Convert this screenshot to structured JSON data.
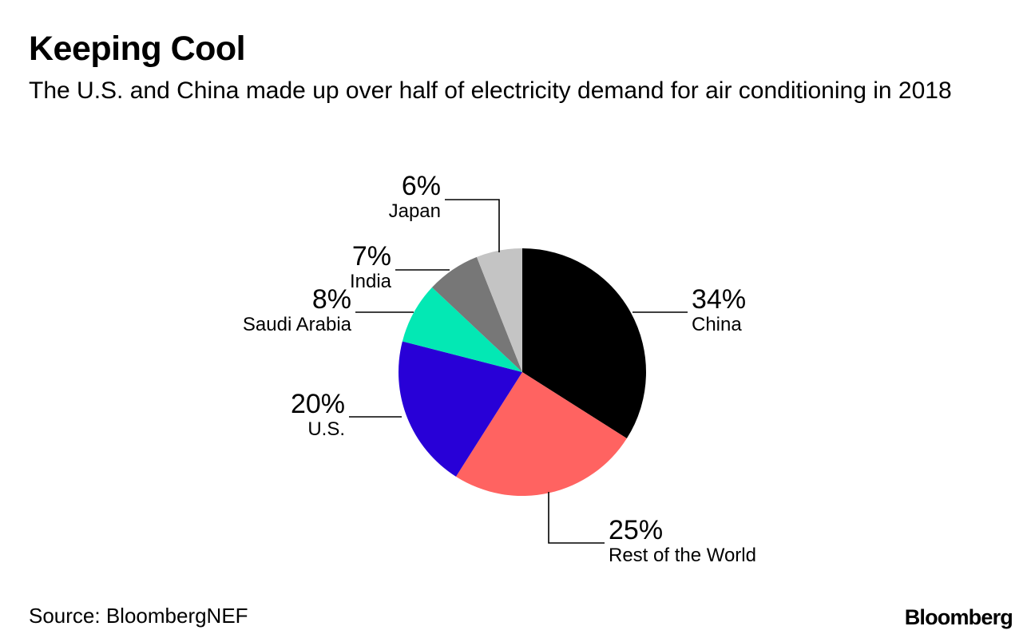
{
  "header": {
    "title": "Keeping Cool",
    "subtitle": "The U.S. and China made up over half of electricity demand for air conditioning in 2018"
  },
  "footer": {
    "source": "Source: BloombergNEF",
    "brand": "Bloomberg"
  },
  "chart_data": {
    "type": "pie",
    "title": "Keeping Cool",
    "subtitle": "The U.S. and China made up over half of electricity demand for air conditioning in 2018",
    "unit": "%",
    "slices": [
      {
        "label": "China",
        "value": 34,
        "value_label": "34%",
        "color": "#000000"
      },
      {
        "label": "Rest of the World",
        "value": 25,
        "value_label": "25%",
        "color": "#ff6361"
      },
      {
        "label": "U.S.",
        "value": 20,
        "value_label": "20%",
        "color": "#2800d7"
      },
      {
        "label": "Saudi Arabia",
        "value": 8,
        "value_label": "8%",
        "color": "#03e8b4"
      },
      {
        "label": "India",
        "value": 7,
        "value_label": "7%",
        "color": "#777777"
      },
      {
        "label": "Japan",
        "value": 6,
        "value_label": "6%",
        "color": "#c4c4c4"
      }
    ]
  }
}
